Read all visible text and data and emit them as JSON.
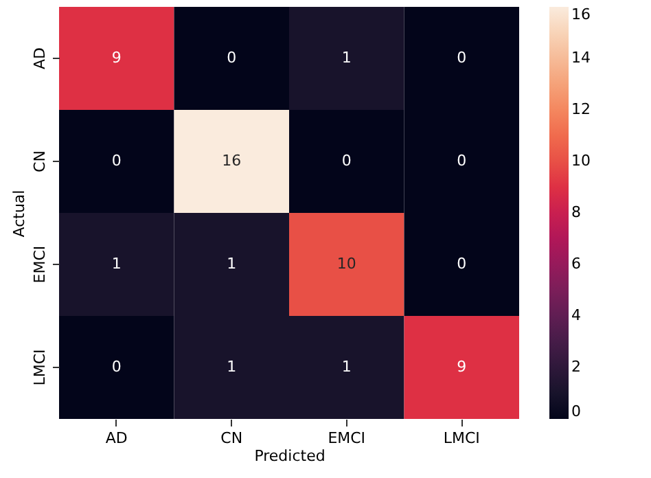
{
  "chart_data": {
    "type": "heatmap",
    "xlabel": "Predicted",
    "ylabel": "Actual",
    "categories": [
      "AD",
      "CN",
      "EMCI",
      "LMCI"
    ],
    "y_categories": [
      "AD",
      "CN",
      "EMCI",
      "LMCI"
    ],
    "cells": [
      [
        9,
        0,
        1,
        0
      ],
      [
        0,
        16,
        0,
        0
      ],
      [
        1,
        1,
        10,
        0
      ],
      [
        0,
        1,
        1,
        9
      ]
    ],
    "clim": [
      0,
      16
    ],
    "cticks": [
      0,
      2,
      4,
      6,
      8,
      10,
      12,
      14,
      16
    ],
    "data_labels": true
  }
}
